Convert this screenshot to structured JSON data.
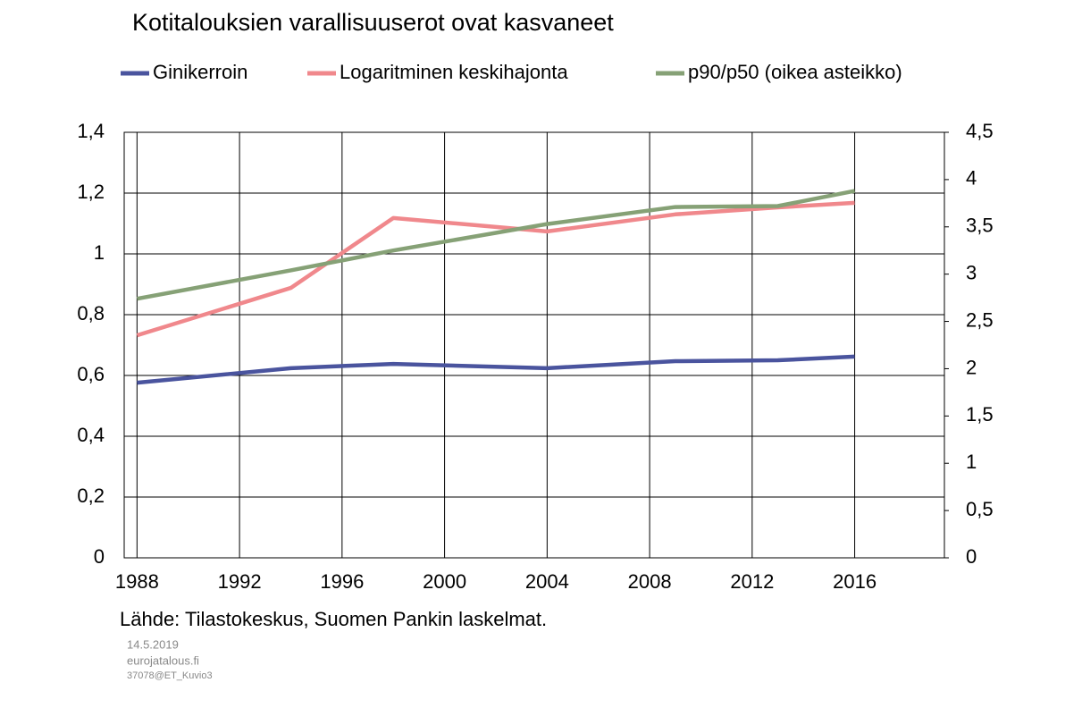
{
  "chart_data": {
    "type": "line",
    "title": "Kotitalouksien varallisuuserot ovat kasvaneet",
    "series": [
      {
        "name": "Ginikerroin",
        "color": "#4a549e",
        "x": [
          1988,
          1994,
          1998,
          2004,
          2009,
          2013,
          2016
        ],
        "values": [
          0.576,
          0.624,
          0.638,
          0.624,
          0.647,
          0.65,
          0.662
        ]
      },
      {
        "name": "Logaritminen keskihajonta",
        "color": "#f0888c",
        "x": [
          1988,
          1994,
          1998,
          2004,
          2009,
          2013,
          2016
        ],
        "values": [
          0.732,
          0.888,
          1.118,
          1.074,
          1.13,
          1.153,
          1.168
        ]
      },
      {
        "name": "p90/p50 (oikea asteikko)",
        "color": "#86a176",
        "axis": "y2",
        "x": [
          1988,
          1994,
          1998,
          2004,
          2009,
          2013,
          2016
        ],
        "values": [
          2.74,
          3.04,
          3.25,
          3.53,
          3.71,
          3.72,
          3.88
        ]
      }
    ],
    "xlim": [
      1987.5,
      2019.5
    ],
    "xticks": [
      1988,
      1992,
      1996,
      2000,
      2004,
      2008,
      2012,
      2016
    ],
    "ylim": [
      0,
      1.4
    ],
    "yticks": [
      0,
      {
        "value": 0.2,
        "label": "0,2"
      },
      {
        "value": 0.4,
        "label": "0,4"
      },
      {
        "value": 0.6,
        "label": "0,6"
      },
      {
        "value": 0.8,
        "label": "0,8"
      },
      1,
      {
        "value": 1.2,
        "label": "1,2"
      },
      {
        "value": 1.4,
        "label": "1,4"
      }
    ],
    "y2lim": [
      0,
      4.5
    ],
    "y2ticks": [
      0,
      {
        "value": 0.5,
        "label": "0,5"
      },
      1,
      {
        "value": 1.5,
        "label": "1,5"
      },
      2,
      {
        "value": 2.5,
        "label": "2,5"
      },
      3,
      {
        "value": 3.5,
        "label": "3,5"
      },
      4,
      {
        "value": 4.5,
        "label": "4,5"
      }
    ],
    "grid": true,
    "source": "Lähde: Tilastokeskus, Suomen Pankin laskelmat.",
    "date": "14.5.2019",
    "site": "eurojatalous.fi",
    "code": "37078@ET_Kuvio3"
  }
}
